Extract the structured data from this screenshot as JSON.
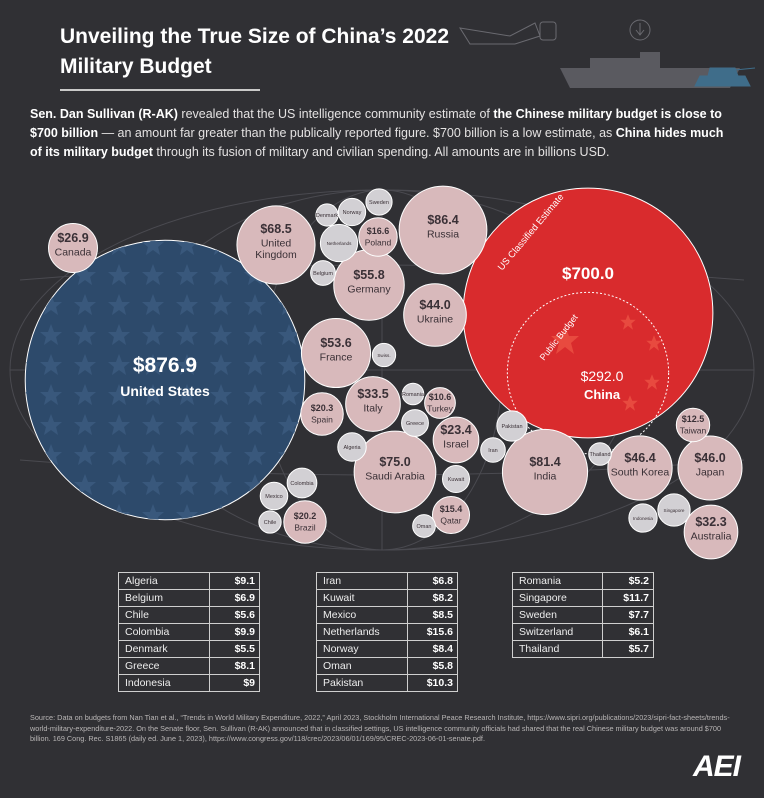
{
  "title": "Unveiling the True Size of China’s 2022 Military Budget",
  "intro": {
    "part1": "Sen. Dan Sullivan (R-AK)",
    "part2": " revealed that the US intelligence community estimate of ",
    "part3": "the Chinese military budget is close to $700 billion",
    "part4": " — an amount far greater than the publically reported figure. $700 billion is a low estimate, as ",
    "part5": "China hides much of its military budget",
    "part6": " through its fusion of military and civilian spending. All amounts are in billions USD."
  },
  "chart_data": {
    "type": "bubble",
    "units": "billions USD",
    "bubbles": [
      {
        "label": "United States",
        "value": 876.9,
        "text": "$876.9",
        "fill": "#2d4a6b",
        "labeled": true
      },
      {
        "label": "China",
        "value": 700.0,
        "text": "$700.0",
        "fill": "#d92b2d",
        "labeled": true,
        "arc_text": "US Classified Estimate"
      },
      {
        "label": "China",
        "value": 292.0,
        "text": "$292.0",
        "fill": "#d92b2d",
        "labeled": true,
        "arc_text": "Public Budget",
        "nested": true
      },
      {
        "label": "Russia",
        "value": 86.4,
        "text": "$86.4",
        "fill": "#d8b9bb",
        "labeled": true
      },
      {
        "label": "India",
        "value": 81.4,
        "text": "$81.4",
        "fill": "#d8b9bb",
        "labeled": true
      },
      {
        "label": "Saudi Arabia",
        "value": 75.0,
        "text": "$75.0",
        "fill": "#d8b9bb",
        "labeled": true
      },
      {
        "label": "United Kingdom",
        "value": 68.5,
        "text": "$68.5",
        "fill": "#d8b9bb",
        "labeled": true
      },
      {
        "label": "Germany",
        "value": 55.8,
        "text": "$55.8",
        "fill": "#d8b9bb",
        "labeled": true
      },
      {
        "label": "France",
        "value": 53.6,
        "text": "$53.6",
        "fill": "#d8b9bb",
        "labeled": true
      },
      {
        "label": "South Korea",
        "value": 46.4,
        "text": "$46.4",
        "fill": "#d8b9bb",
        "labeled": true
      },
      {
        "label": "Japan",
        "value": 46.0,
        "text": "$46.0",
        "fill": "#d8b9bb",
        "labeled": true
      },
      {
        "label": "Ukraine",
        "value": 44.0,
        "text": "$44.0",
        "fill": "#d8b9bb",
        "labeled": true
      },
      {
        "label": "Italy",
        "value": 33.5,
        "text": "$33.5",
        "fill": "#d8b9bb",
        "labeled": true
      },
      {
        "label": "Australia",
        "value": 32.3,
        "text": "$32.3",
        "fill": "#d8b9bb",
        "labeled": true
      },
      {
        "label": "Canada",
        "value": 26.9,
        "text": "$26.9",
        "fill": "#d8b9bb",
        "labeled": true
      },
      {
        "label": "Israel",
        "value": 23.4,
        "text": "$23.4",
        "fill": "#d8b9bb",
        "labeled": true
      },
      {
        "label": "Spain",
        "value": 20.3,
        "text": "$20.3",
        "fill": "#d8b9bb",
        "labeled": true
      },
      {
        "label": "Brazil",
        "value": 20.2,
        "text": "$20.2",
        "fill": "#d8b9bb",
        "labeled": true
      },
      {
        "label": "Poland",
        "value": 16.6,
        "text": "$16.6",
        "fill": "#d8b9bb",
        "labeled": true
      },
      {
        "label": "Qatar",
        "value": 15.4,
        "text": "$15.4",
        "fill": "#d8b9bb",
        "labeled": true
      },
      {
        "label": "Taiwan",
        "value": 12.5,
        "text": "$12.5",
        "fill": "#d8b9bb",
        "labeled": true
      },
      {
        "label": "Turkey",
        "value": 10.6,
        "text": "$10.6",
        "fill": "#d8b9bb",
        "labeled": true
      },
      {
        "label": "Singapore",
        "value": 11.7,
        "fill": "#d2d0d4"
      },
      {
        "label": "Pakistan",
        "value": 10.3,
        "fill": "#d2d0d4"
      },
      {
        "label": "Colombia",
        "value": 9.9,
        "fill": "#d2d0d4"
      },
      {
        "label": "Algeria",
        "value": 9.1,
        "fill": "#d2d0d4"
      },
      {
        "label": "Indonesia",
        "value": 9,
        "fill": "#d2d0d4"
      },
      {
        "label": "Mexico",
        "value": 8.5,
        "fill": "#d2d0d4"
      },
      {
        "label": "Norway",
        "value": 8.4,
        "fill": "#d2d0d4"
      },
      {
        "label": "Kuwait",
        "value": 8.2,
        "fill": "#d2d0d4"
      },
      {
        "label": "Greece",
        "value": 8.1,
        "fill": "#d2d0d4"
      },
      {
        "label": "Sweden",
        "value": 7.7,
        "fill": "#d2d0d4"
      },
      {
        "label": "Belgium",
        "value": 6.9,
        "fill": "#d2d0d4"
      },
      {
        "label": "Iran",
        "value": 6.8,
        "fill": "#d2d0d4"
      },
      {
        "label": "Switzerland",
        "value": 6.1,
        "fill": "#d2d0d4",
        "short": "Swiss."
      },
      {
        "label": "Oman",
        "value": 5.8,
        "fill": "#d2d0d4"
      },
      {
        "label": "Thailand",
        "value": 5.7,
        "fill": "#d2d0d4"
      },
      {
        "label": "Chile",
        "value": 5.6,
        "fill": "#d2d0d4"
      },
      {
        "label": "Denmark",
        "value": 5.5,
        "fill": "#d2d0d4"
      },
      {
        "label": "Romania",
        "value": 5.2,
        "fill": "#d2d0d4"
      },
      {
        "label": "Netherlands",
        "value": 15.6,
        "fill": "#d2d0d4"
      }
    ],
    "table": [
      [
        [
          "Algeria",
          "$9.1"
        ],
        [
          "Belgium",
          "$6.9"
        ],
        [
          "Chile",
          "$5.6"
        ],
        [
          "Colombia",
          "$9.9"
        ],
        [
          "Denmark",
          "$5.5"
        ],
        [
          "Greece",
          "$8.1"
        ],
        [
          "Indonesia",
          "$9"
        ]
      ],
      [
        [
          "Iran",
          "$6.8"
        ],
        [
          "Kuwait",
          "$8.2"
        ],
        [
          "Mexico",
          "$8.5"
        ],
        [
          "Netherlands",
          "$15.6"
        ],
        [
          "Norway",
          "$8.4"
        ],
        [
          "Oman",
          "$5.8"
        ],
        [
          "Pakistan",
          "$10.3"
        ]
      ],
      [
        [
          "Romania",
          "$5.2"
        ],
        [
          "Singapore",
          "$11.7"
        ],
        [
          "Sweden",
          "$7.7"
        ],
        [
          "Switzerland",
          "$6.1"
        ],
        [
          "Thailand",
          "$5.7"
        ]
      ]
    ]
  },
  "source": "Source: Data on budgets from Nan Tian et al., “Trends in World Military Expenditure, 2022,” April 2023, Stockholm International Peace Research Institute, https://www.sipri.org/publications/2023/sipri-fact-sheets/trends-world-military-expenditure-2022. On the Senate floor, Sen. Sullivan (R-AK) announced that in classified settings, US intelligence community officials had shared that the real Chinese military budget was around $700 billion. 169 Cong. Rec. S1865 (daily ed. June 1, 2023), https://www.congress.gov/118/crec/2023/06/01/169/95/CREC-2023-06-01-senate.pdf.",
  "logo": "AEI"
}
